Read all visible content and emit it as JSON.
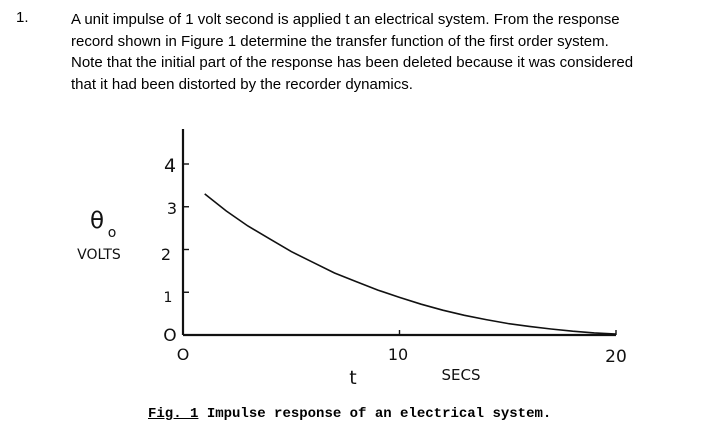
{
  "question": {
    "number": "1.",
    "lines": [
      "A unit impulse of 1 volt second is applied t an electrical system.  From the response",
      "record shown in Figure 1 determine the transfer function of the first order system.",
      "Note that the initial part of the response has been deleted because it was considered",
      "that it had been distorted by the recorder dynamics."
    ]
  },
  "figure": {
    "caption_ref": "Fig. 1",
    "caption_text": "Impulse response of an electrical system."
  },
  "chart_data": {
    "type": "line",
    "ylabel_symbol": "θ",
    "ylabel_subscript": "o",
    "ylabel_units": "VOLTS",
    "xlabel": "t",
    "xunits": "SECS",
    "y_ticks": [
      "O",
      "1",
      "2",
      "3",
      "4"
    ],
    "x_ticks": [
      "O",
      "10",
      "20"
    ],
    "xlim": [
      0,
      20
    ],
    "ylim": [
      0,
      4
    ],
    "series": [
      {
        "x": [
          1,
          2,
          3,
          4,
          5,
          6,
          7,
          8,
          9,
          10,
          11,
          12,
          13,
          14,
          15,
          16,
          17,
          18,
          19,
          20
        ],
        "y": [
          3.3,
          2.9,
          2.55,
          2.25,
          1.95,
          1.7,
          1.45,
          1.25,
          1.05,
          0.88,
          0.72,
          0.58,
          0.46,
          0.36,
          0.27,
          0.2,
          0.14,
          0.09,
          0.05,
          0.02
        ]
      }
    ]
  }
}
